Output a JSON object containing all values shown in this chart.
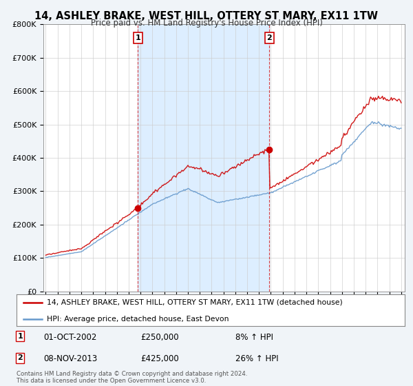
{
  "title": "14, ASHLEY BRAKE, WEST HILL, OTTERY ST MARY, EX11 1TW",
  "subtitle": "Price paid vs. HM Land Registry's House Price Index (HPI)",
  "ylabel_ticks": [
    "£0",
    "£100K",
    "£200K",
    "£300K",
    "£400K",
    "£500K",
    "£600K",
    "£700K",
    "£800K"
  ],
  "ylim": [
    0,
    800000
  ],
  "red_color": "#cc0000",
  "blue_color": "#6699cc",
  "fill_color": "#ddeeff",
  "sale1_year": 2002.78,
  "sale1_price": 250000,
  "sale1_label": "1",
  "sale2_year": 2013.87,
  "sale2_price": 425000,
  "sale2_label": "2",
  "legend_line1": "14, ASHLEY BRAKE, WEST HILL, OTTERY ST MARY, EX11 1TW (detached house)",
  "legend_line2": "HPI: Average price, detached house, East Devon",
  "annotation1_date": "01-OCT-2002",
  "annotation1_price": "£250,000",
  "annotation1_hpi": "8% ↑ HPI",
  "annotation2_date": "08-NOV-2013",
  "annotation2_price": "£425,000",
  "annotation2_hpi": "26% ↑ HPI",
  "footnote": "Contains HM Land Registry data © Crown copyright and database right 2024.\nThis data is licensed under the Open Government Licence v3.0.",
  "background_color": "#f0f4f8",
  "plot_bg_color": "#ffffff"
}
